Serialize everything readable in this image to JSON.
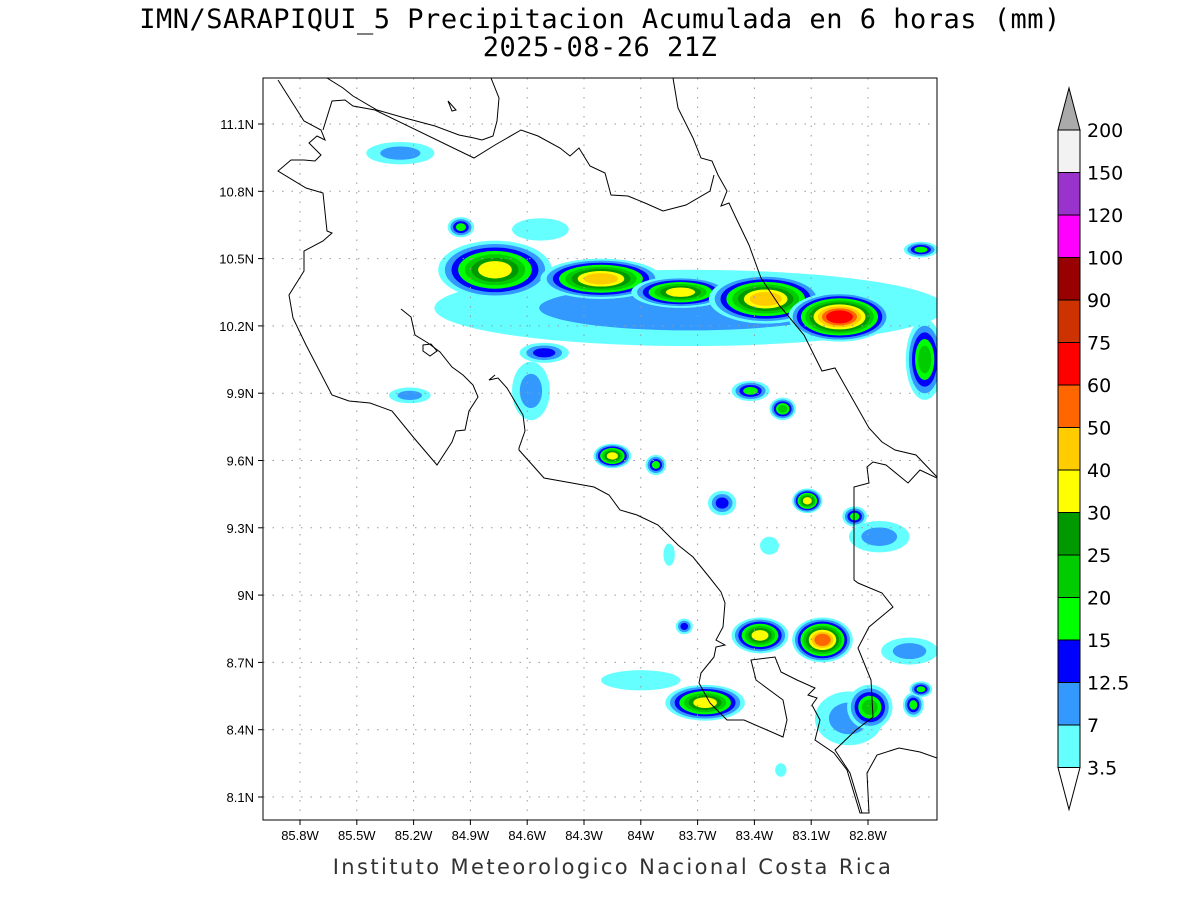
{
  "title": {
    "line1": "IMN/SARAPIQUI_5 Precipitacion Acumulada en 6 horas (mm)",
    "line2": "2025-08-26 21Z"
  },
  "footer": "Instituto Meteorologico Nacional Costa Rica",
  "map": {
    "lon_ticks": [
      "85.8W",
      "85.5W",
      "85.2W",
      "84.9W",
      "84.6W",
      "84.3W",
      "84W",
      "83.7W",
      "83.4W",
      "83.1W",
      "82.8W"
    ],
    "lat_ticks": [
      "11.1N",
      "10.8N",
      "10.5N",
      "10.2N",
      "9.9N",
      "9.6N",
      "9.3N",
      "9N",
      "8.7N",
      "8.4N",
      "8.1N"
    ],
    "grid": "dotted",
    "extent": {
      "lon": [
        -86.0,
        -82.43
      ],
      "lat": [
        8.0,
        11.3
      ]
    },
    "coastline_color": "#000000"
  },
  "legend": {
    "labels": [
      "3.5",
      "7",
      "12.5",
      "15",
      "20",
      "25",
      "30",
      "40",
      "50",
      "60",
      "75",
      "90",
      "100",
      "120",
      "150",
      "200"
    ],
    "colors": [
      "#66ffff",
      "#3399ff",
      "#0000ff",
      "#00ff00",
      "#00cc00",
      "#009900",
      "#ffff00",
      "#ffcc00",
      "#ff6600",
      "#ff0000",
      "#cc3300",
      "#990000",
      "#ff00ff",
      "#9933cc",
      "#f2f2f2"
    ],
    "over_color": "#aaaaaa",
    "under_color": "#ffffff"
  },
  "precip_cells": [
    {
      "lon": -83.74,
      "lat": 10.28,
      "lon_radius": 1.35,
      "lat_radius": 0.17,
      "peak": "7"
    },
    {
      "lon": -85.27,
      "lat": 10.97,
      "lon_radius": 0.18,
      "lat_radius": 0.05,
      "peak": "7"
    },
    {
      "lon": -84.53,
      "lat": 10.63,
      "lon_radius": 0.15,
      "lat_radius": 0.05,
      "peak": "3.5"
    },
    {
      "lon": -84.58,
      "lat": 9.91,
      "lon_radius": 0.1,
      "lat_radius": 0.13,
      "peak": "7"
    },
    {
      "lon": -82.74,
      "lat": 9.26,
      "lon_radius": 0.16,
      "lat_radius": 0.07,
      "peak": "7"
    },
    {
      "lon": -84.0,
      "lat": 8.62,
      "lon_radius": 0.21,
      "lat_radius": 0.045,
      "peak": "3.5"
    },
    {
      "lon": -83.32,
      "lat": 9.22,
      "lon_radius": 0.05,
      "lat_radius": 0.04,
      "peak": "3.5"
    },
    {
      "lon": -83.85,
      "lat": 9.18,
      "lon_radius": 0.03,
      "lat_radius": 0.05,
      "peak": "3.5"
    },
    {
      "lon": -82.58,
      "lat": 8.75,
      "lon_radius": 0.15,
      "lat_radius": 0.06,
      "peak": "7"
    },
    {
      "lon": -82.9,
      "lat": 8.45,
      "lon_radius": 0.18,
      "lat_radius": 0.12,
      "peak": "7"
    },
    {
      "lon": -83.26,
      "lat": 8.22,
      "lon_radius": 0.03,
      "lat_radius": 0.03,
      "peak": "3.5"
    },
    {
      "lon": -84.77,
      "lat": 10.45,
      "lon_radius": 0.3,
      "lat_radius": 0.13,
      "peak": "30"
    },
    {
      "lon": -84.21,
      "lat": 10.41,
      "lon_radius": 0.32,
      "lat_radius": 0.09,
      "peak": "40"
    },
    {
      "lon": -83.79,
      "lat": 10.35,
      "lon_radius": 0.26,
      "lat_radius": 0.07,
      "peak": "30"
    },
    {
      "lon": -83.34,
      "lat": 10.32,
      "lon_radius": 0.3,
      "lat_radius": 0.11,
      "peak": "40"
    },
    {
      "lon": -82.95,
      "lat": 10.24,
      "lon_radius": 0.27,
      "lat_radius": 0.11,
      "peak": "60"
    },
    {
      "lon": -82.5,
      "lat": 10.05,
      "lon_radius": 0.1,
      "lat_radius": 0.18,
      "peak": "20"
    },
    {
      "lon": -84.95,
      "lat": 10.64,
      "lon_radius": 0.07,
      "lat_radius": 0.045,
      "peak": "15"
    },
    {
      "lon": -84.51,
      "lat": 10.08,
      "lon_radius": 0.13,
      "lat_radius": 0.045,
      "peak": "12.5"
    },
    {
      "lon": -85.22,
      "lat": 9.89,
      "lon_radius": 0.11,
      "lat_radius": 0.035,
      "peak": "7"
    },
    {
      "lon": -83.42,
      "lat": 9.91,
      "lon_radius": 0.1,
      "lat_radius": 0.045,
      "peak": "15"
    },
    {
      "lon": -83.25,
      "lat": 9.83,
      "lon_radius": 0.07,
      "lat_radius": 0.05,
      "peak": "20"
    },
    {
      "lon": -84.15,
      "lat": 9.62,
      "lon_radius": 0.1,
      "lat_radius": 0.055,
      "peak": "30"
    },
    {
      "lon": -83.92,
      "lat": 9.58,
      "lon_radius": 0.055,
      "lat_radius": 0.045,
      "peak": "15"
    },
    {
      "lon": -83.57,
      "lat": 9.41,
      "lon_radius": 0.075,
      "lat_radius": 0.055,
      "peak": "12.5"
    },
    {
      "lon": -83.12,
      "lat": 9.42,
      "lon_radius": 0.08,
      "lat_radius": 0.055,
      "peak": "30"
    },
    {
      "lon": -82.87,
      "lat": 9.35,
      "lon_radius": 0.065,
      "lat_radius": 0.045,
      "peak": "15"
    },
    {
      "lon": -83.77,
      "lat": 8.86,
      "lon_radius": 0.045,
      "lat_radius": 0.035,
      "peak": "12.5"
    },
    {
      "lon": -83.37,
      "lat": 8.82,
      "lon_radius": 0.15,
      "lat_radius": 0.08,
      "peak": "30"
    },
    {
      "lon": -83.04,
      "lat": 8.8,
      "lon_radius": 0.16,
      "lat_radius": 0.1,
      "peak": "50"
    },
    {
      "lon": -83.66,
      "lat": 8.52,
      "lon_radius": 0.21,
      "lat_radius": 0.08,
      "peak": "30"
    },
    {
      "lon": -82.79,
      "lat": 8.5,
      "lon_radius": 0.12,
      "lat_radius": 0.1,
      "peak": "20"
    },
    {
      "lon": -82.56,
      "lat": 8.51,
      "lon_radius": 0.055,
      "lat_radius": 0.055,
      "peak": "15"
    },
    {
      "lon": -82.52,
      "lat": 8.58,
      "lon_radius": 0.06,
      "lat_radius": 0.035,
      "peak": "15"
    },
    {
      "lon": -82.52,
      "lat": 10.54,
      "lon_radius": 0.09,
      "lat_radius": 0.035,
      "peak": "15"
    }
  ]
}
